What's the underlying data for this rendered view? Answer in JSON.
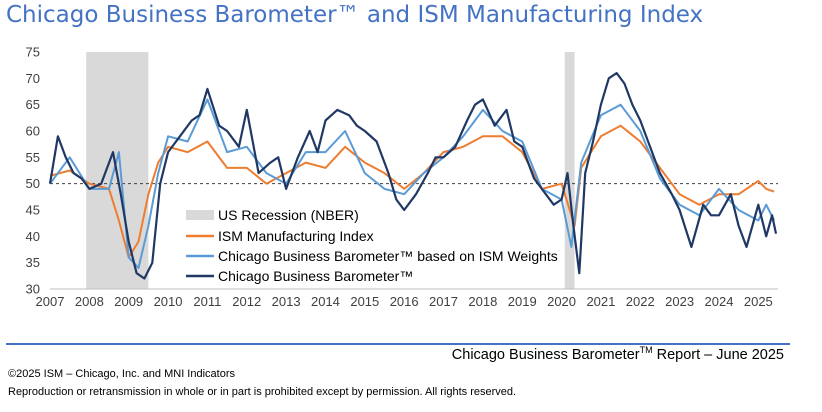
{
  "title": "Chicago Business Barometer™ and ISM Manufacturing Index",
  "footer": {
    "report_prefix": "Chicago Business Barometer",
    "report_sup": "TM",
    "report_suffix": " Report – June 2025",
    "copyright": "©2025 ISM – Chicago, Inc. and MNI Indicators",
    "rights": "Reproduction or retransmission in whole or in part is prohibited except by permission. All rights reserved."
  },
  "colors": {
    "title": "#4472c4",
    "recession": "#d9d9d9",
    "ism": "#ed7d31",
    "weighted": "#5b9bd5",
    "cbb": "#203864",
    "reference_line": "#404040"
  },
  "chart_data": {
    "type": "line",
    "title": "Chicago Business Barometer™ and ISM Manufacturing Index",
    "x_ticks": [
      "2007",
      "2008",
      "2009",
      "2010",
      "2011",
      "2012",
      "2013",
      "2014",
      "2015",
      "2016",
      "2017",
      "2018",
      "2019",
      "2020",
      "2021",
      "2022",
      "2023",
      "2024",
      "2025"
    ],
    "y_ticks": [
      30,
      35,
      40,
      45,
      50,
      55,
      60,
      65,
      70,
      75
    ],
    "ylim": [
      30,
      75
    ],
    "xlim": [
      2007.0,
      2025.5
    ],
    "reference_line": 50,
    "grid": false,
    "legend_position": "lower-left",
    "recessions": [
      {
        "name": "US Recession (NBER)",
        "start": 2007.92,
        "end": 2009.5
      },
      {
        "name": "US Recession (NBER)",
        "start": 2020.08,
        "end": 2020.33
      }
    ],
    "legend": [
      "US Recession (NBER)",
      "ISM Manufacturing Index",
      "Chicago Business Barometer™ based on ISM Weights",
      "Chicago Business Barometer™"
    ],
    "series": [
      {
        "name": "ISM Manufacturing Index",
        "x": [
          2007.0,
          2007.5,
          2008.0,
          2008.5,
          2008.75,
          2009.0,
          2009.25,
          2009.5,
          2009.75,
          2010.0,
          2010.5,
          2011.0,
          2011.5,
          2012.0,
          2012.5,
          2013.0,
          2013.5,
          2014.0,
          2014.5,
          2015.0,
          2015.5,
          2016.0,
          2016.5,
          2017.0,
          2017.5,
          2018.0,
          2018.5,
          2019.0,
          2019.5,
          2020.0,
          2020.33,
          2020.5,
          2021.0,
          2021.5,
          2022.0,
          2022.5,
          2023.0,
          2023.5,
          2024.0,
          2024.5,
          2025.0,
          2025.2,
          2025.4
        ],
        "y": [
          51.5,
          52.5,
          50,
          49,
          43,
          36,
          39,
          48,
          54,
          57,
          56,
          58,
          53,
          53,
          50,
          52,
          54,
          53,
          57,
          54,
          52,
          49,
          52,
          56,
          57,
          59,
          59,
          56,
          49,
          50,
          42,
          53,
          59,
          61,
          58,
          53,
          48,
          46,
          48,
          48,
          50.5,
          49,
          48.5
        ]
      },
      {
        "name": "Chicago Business Barometer™ based on ISM Weights",
        "x": [
          2007.0,
          2007.5,
          2008.0,
          2008.5,
          2008.75,
          2009.0,
          2009.25,
          2009.5,
          2009.75,
          2010.0,
          2010.5,
          2011.0,
          2011.5,
          2012.0,
          2012.5,
          2013.0,
          2013.5,
          2014.0,
          2014.5,
          2015.0,
          2015.5,
          2016.0,
          2016.5,
          2017.0,
          2017.5,
          2018.0,
          2018.5,
          2019.0,
          2019.5,
          2020.0,
          2020.25,
          2020.5,
          2021.0,
          2021.5,
          2022.0,
          2022.5,
          2023.0,
          2023.5,
          2024.0,
          2024.5,
          2025.0,
          2025.2,
          2025.4
        ],
        "y": [
          50,
          55,
          49,
          49,
          56,
          36,
          34,
          42,
          52,
          59,
          58,
          66,
          56,
          57,
          52,
          50,
          56,
          56,
          60,
          52,
          49,
          48,
          52,
          55,
          59,
          64,
          60,
          58,
          49,
          47,
          38,
          54,
          63,
          65,
          60,
          51,
          46,
          44,
          49,
          45,
          43,
          46,
          43
        ]
      },
      {
        "name": "Chicago Business Barometer™",
        "x": [
          2007.0,
          2007.2,
          2007.4,
          2007.6,
          2007.8,
          2008.0,
          2008.3,
          2008.6,
          2008.8,
          2009.0,
          2009.2,
          2009.4,
          2009.6,
          2009.8,
          2010.0,
          2010.3,
          2010.6,
          2010.8,
          2011.0,
          2011.3,
          2011.5,
          2011.8,
          2012.0,
          2012.3,
          2012.6,
          2012.8,
          2013.0,
          2013.3,
          2013.6,
          2013.8,
          2014.0,
          2014.3,
          2014.6,
          2014.8,
          2015.0,
          2015.3,
          2015.6,
          2015.8,
          2016.0,
          2016.3,
          2016.6,
          2016.8,
          2017.0,
          2017.3,
          2017.6,
          2017.8,
          2018.0,
          2018.3,
          2018.6,
          2018.8,
          2019.0,
          2019.3,
          2019.6,
          2019.8,
          2020.0,
          2020.15,
          2020.3,
          2020.45,
          2020.6,
          2020.8,
          2021.0,
          2021.2,
          2021.4,
          2021.6,
          2021.8,
          2022.0,
          2022.2,
          2022.5,
          2022.8,
          2023.0,
          2023.3,
          2023.6,
          2023.8,
          2024.0,
          2024.3,
          2024.5,
          2024.7,
          2025.0,
          2025.2,
          2025.35,
          2025.45
        ],
        "y": [
          50,
          59,
          55,
          52,
          51,
          49,
          50,
          56,
          48,
          39,
          33,
          32,
          35,
          50,
          56,
          59,
          62,
          63,
          68,
          61,
          60,
          57,
          64,
          52,
          54,
          55,
          49,
          55,
          60,
          56,
          62,
          64,
          63,
          61,
          60,
          58,
          52,
          47,
          45,
          48,
          52,
          55,
          55,
          57,
          62,
          65,
          66,
          61,
          64,
          58,
          57,
          51,
          48,
          46,
          47,
          52,
          42,
          33,
          52,
          58,
          65,
          70,
          71,
          69,
          65,
          62,
          58,
          52,
          48,
          45,
          38,
          46,
          44,
          44,
          48,
          42,
          38,
          46,
          40,
          44,
          40.5
        ]
      }
    ]
  }
}
